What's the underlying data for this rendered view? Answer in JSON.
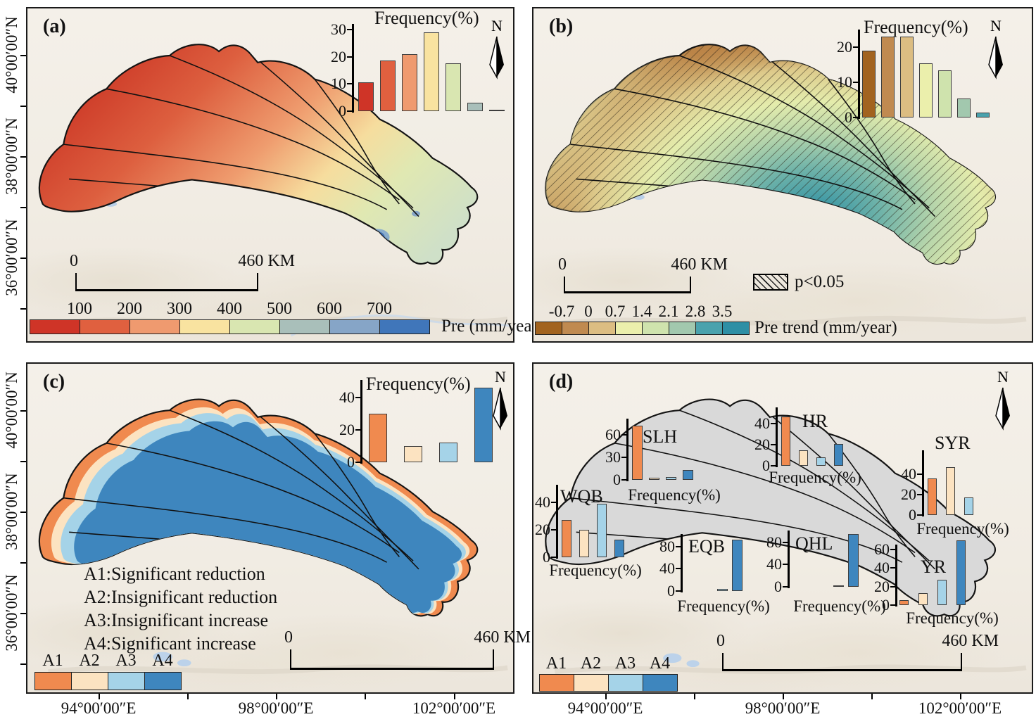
{
  "axes": {
    "lat_labels": [
      "40°00′00″N",
      "38°00′00″N",
      "36°00′00″N"
    ],
    "lon_labels": [
      "94°00′00″E",
      "98°00′00″E",
      "102°00′00″E"
    ]
  },
  "palettes": {
    "pre": [
      "#cf3427",
      "#e0603f",
      "#ef9a6f",
      "#f9e3a0",
      "#d9e6b1",
      "#a9bfba",
      "#86a5c7",
      "#4076ba"
    ],
    "trend": [
      "#a2631f",
      "#c08a50",
      "#dcbd82",
      "#ebefac",
      "#cfe3ad",
      "#a2c8ae",
      "#4aa2ad",
      "#2e8fa5"
    ],
    "cat": [
      "#f08a4f",
      "#fce3c1",
      "#a5d3e8",
      "#3e86be"
    ]
  },
  "panel_a": {
    "label": "(a)",
    "colorbar_labels": [
      "100",
      "200",
      "300",
      "400",
      "500",
      "600",
      "700"
    ],
    "colorbar_title": "Pre (mm/year)",
    "scalebar": {
      "zero": "0",
      "end": "460 KM"
    },
    "north": "N"
  },
  "panel_b": {
    "label": "(b)",
    "colorbar_labels": [
      "-0.7",
      "0",
      "0.7",
      "1.4",
      "2.1",
      "2.8",
      "3.5"
    ],
    "colorbar_title": "Pre trend (mm/year)",
    "hatch_label": "p<0.05",
    "scalebar": {
      "zero": "0",
      "end": "460 KM"
    },
    "north": "N"
  },
  "panel_c": {
    "label": "(c)",
    "notes": [
      "A1:Significant reduction",
      "A2:Insignificant reduction",
      "A3:Insignificant increase",
      "A4:Significant increase"
    ],
    "legend_labels": [
      "A1",
      "A2",
      "A3",
      "A4"
    ],
    "scalebar": {
      "zero": "0",
      "end": "460 KM"
    },
    "north": "N"
  },
  "panel_d": {
    "label": "(d)",
    "legend_labels": [
      "A1",
      "A2",
      "A3",
      "A4"
    ],
    "scalebar": {
      "zero": "0",
      "end": "460 KM"
    },
    "north": "N"
  },
  "chart_data": [
    {
      "id": "a-inset",
      "type": "bar",
      "title": "Frequency(%)",
      "ticks": [
        0,
        10,
        20,
        30
      ],
      "ylim": [
        0,
        32
      ],
      "categories": [
        "<100",
        "100-200",
        "200-300",
        "300-400",
        "400-500",
        "500-600",
        "600-700"
      ],
      "values": [
        10.5,
        18.5,
        21,
        29,
        17.5,
        3,
        0.5
      ],
      "palette": "pre"
    },
    {
      "id": "b-inset",
      "type": "bar",
      "title": "Frequency(%)",
      "ticks": [
        0,
        10,
        20
      ],
      "ylim": [
        0,
        25
      ],
      "categories": [
        "<-0.7",
        "-0.7-0",
        "0-0.7",
        "0.7-1.4",
        "1.4-2.1",
        "2.1-2.8",
        "2.8-3.5"
      ],
      "values": [
        19,
        23,
        23,
        15.5,
        13.5,
        5.5,
        1.5
      ],
      "palette": "trend"
    },
    {
      "id": "c-inset",
      "type": "bar",
      "title": "Frequency(%)",
      "ticks": [
        0,
        20,
        40
      ],
      "ylim": [
        0,
        51
      ],
      "categories": [
        "A1",
        "A2",
        "A3",
        "A4"
      ],
      "values": [
        30,
        10,
        12,
        46
      ],
      "palette": "cat"
    },
    {
      "id": "slh",
      "type": "bar",
      "region": "SLH",
      "ylabel": "Frequency(%)",
      "ticks": [
        0,
        30,
        60
      ],
      "ylim": [
        0,
        82
      ],
      "categories": [
        "A1",
        "A2",
        "A3",
        "A4"
      ],
      "values": [
        72,
        3,
        4,
        13
      ],
      "palette": "cat"
    },
    {
      "id": "hr",
      "type": "bar",
      "region": "HR",
      "ylabel": "Frequency(%)",
      "ticks": [
        0,
        20,
        40
      ],
      "ylim": [
        0,
        55
      ],
      "categories": [
        "A1",
        "A2",
        "A3",
        "A4"
      ],
      "values": [
        47,
        15,
        8,
        21
      ],
      "palette": "cat"
    },
    {
      "id": "syr",
      "type": "bar",
      "region": "SYR",
      "ylabel": "Frequency(%)",
      "ticks": [
        0,
        20,
        40
      ],
      "ylim": [
        0,
        63
      ],
      "categories": [
        "A1",
        "A2",
        "A3",
        "A4"
      ],
      "values": [
        36,
        47,
        17,
        0
      ],
      "palette": "cat"
    },
    {
      "id": "wqb",
      "type": "bar",
      "region": "WQB",
      "ylabel": "Frequency(%)",
      "ticks": [
        0,
        20,
        40
      ],
      "ylim": [
        0,
        53
      ],
      "categories": [
        "A1",
        "A2",
        "A3",
        "A4"
      ],
      "values": [
        27,
        20,
        39,
        13
      ],
      "palette": "cat"
    },
    {
      "id": "eqb",
      "type": "bar",
      "region": "EQB",
      "ylabel": "Frequency(%)",
      "ticks": [
        0,
        40,
        80
      ],
      "ylim": [
        0,
        102
      ],
      "categories": [
        "A1",
        "A2",
        "A3",
        "A4"
      ],
      "values": [
        0,
        0,
        4,
        93
      ],
      "palette": "cat"
    },
    {
      "id": "qhl",
      "type": "bar",
      "region": "QHL",
      "ylabel": "Frequency(%)",
      "ticks": [
        0,
        40,
        80
      ],
      "ylim": [
        0,
        102
      ],
      "categories": [
        "A1",
        "A2",
        "A3",
        "A4"
      ],
      "values": [
        0,
        0,
        2,
        95
      ],
      "palette": "cat"
    },
    {
      "id": "yr",
      "type": "bar",
      "region": "YR",
      "ylabel": "Frequency(%)",
      "ticks": [
        0,
        20,
        40,
        60
      ],
      "ylim": [
        0,
        72
      ],
      "categories": [
        "A1",
        "A2",
        "A3",
        "A4"
      ],
      "values": [
        5,
        13,
        27,
        70
      ],
      "palette": "cat"
    }
  ]
}
